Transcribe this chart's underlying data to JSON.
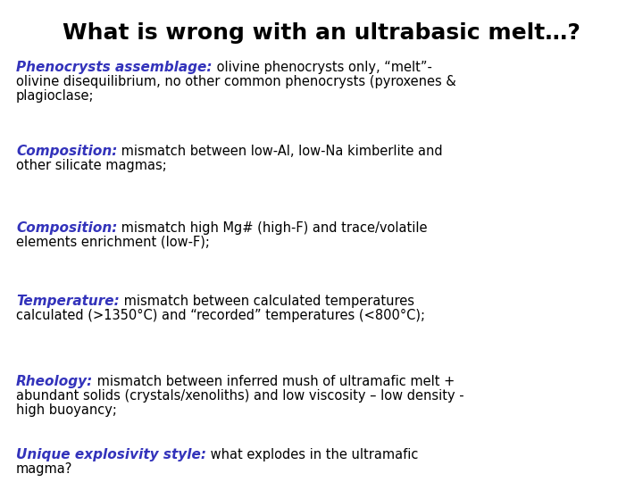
{
  "title": "What is wrong with an ultrabasic melt…?",
  "background_color": "#ffffff",
  "title_color": "#000000",
  "title_fontsize": 18,
  "label_color": "#3333bb",
  "body_color": "#000000",
  "label_fontsize": 11,
  "body_fontsize": 10.5,
  "blocks": [
    {
      "label": "Phenocrysts assemblage:",
      "body": " olivine phenocrysts only, “melt”-\nolivine disequilibrium, no other common phenocrysts (pyroxenes &\nplagioclase;"
    },
    {
      "label": "Composition:",
      "body": " mismatch between low-Al, low-Na kimberlite and\nother silicate magmas;"
    },
    {
      "label": "Composition:",
      "body": " mismatch high Mg# (high-F) and trace/volatile\nelements enrichment (low-F);"
    },
    {
      "label": "Temperature:",
      "body": " mismatch between calculated temperatures\ncalculated (>1350°C) and “recorded” temperatures (<800°C);"
    },
    {
      "label": "Rheology:",
      "body": " mismatch between inferred mush of ultramafic melt +\nabundant solids (crystals/xenoliths) and low viscosity – low density -\nhigh buoyancy;"
    },
    {
      "label": "Unique explosivity style:",
      "body": " what explodes in the ultramafic\nmagma?"
    }
  ]
}
